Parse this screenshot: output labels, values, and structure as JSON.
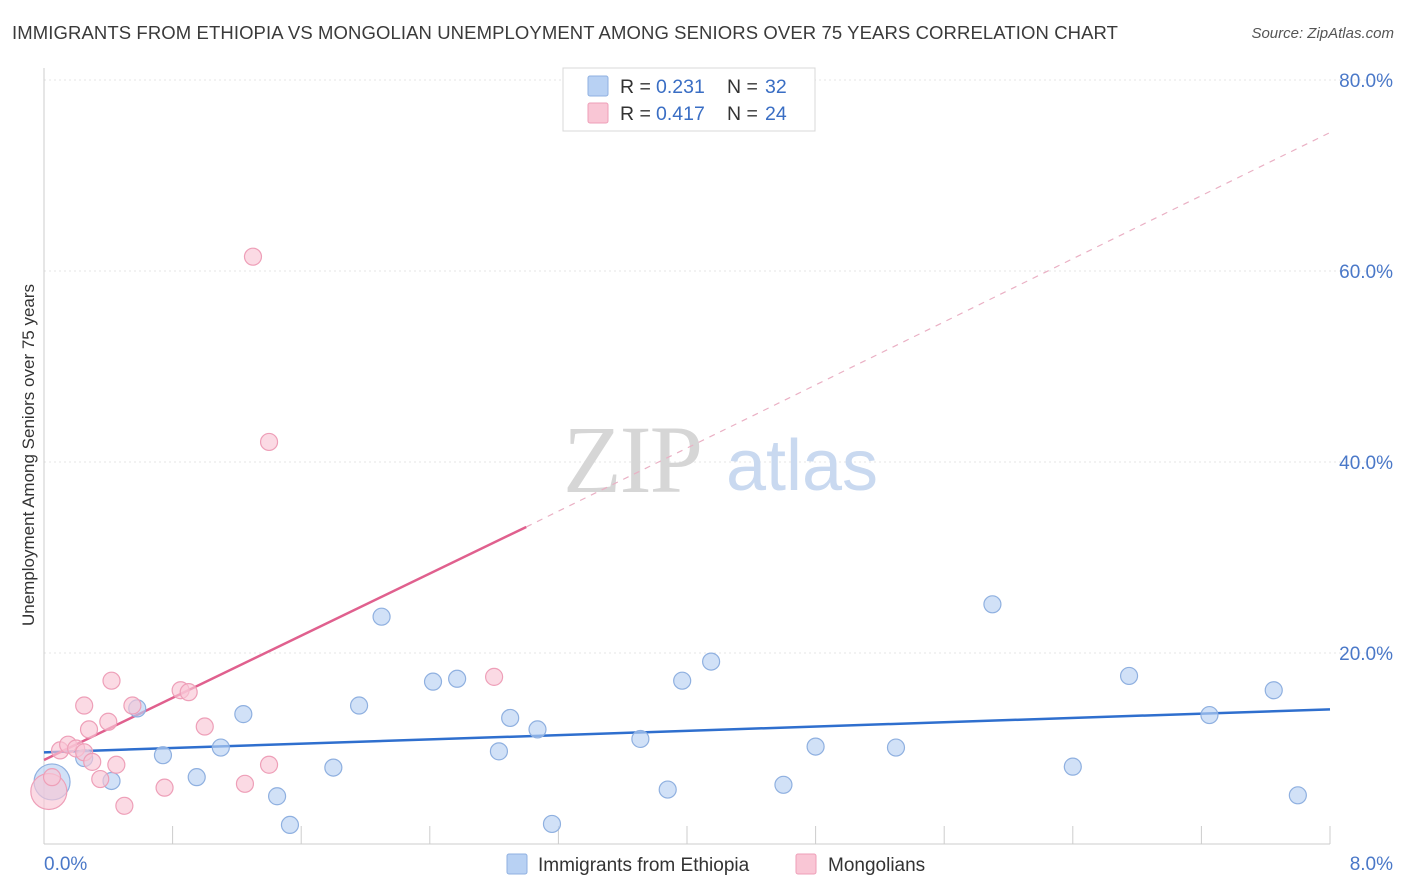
{
  "title": "IMMIGRANTS FROM ETHIOPIA VS MONGOLIAN UNEMPLOYMENT AMONG SENIORS OVER 75 YEARS CORRELATION CHART",
  "source": "Source: ZipAtlas.com",
  "watermark": {
    "zip": "ZIP",
    "atlas": "atlas"
  },
  "legend_top": [
    {
      "r_label": "R =",
      "r_value": "0.231",
      "n_label": "N =",
      "n_value": "32",
      "fill": "#b8d1f3",
      "stroke": "#8fb0e0"
    },
    {
      "r_label": "R =",
      "r_value": "0.417",
      "n_label": "N =",
      "n_value": "24",
      "fill": "#f9c6d5",
      "stroke": "#ee9fb8"
    }
  ],
  "chart_data": {
    "type": "scatter",
    "title": "IMMIGRANTS FROM ETHIOPIA VS MONGOLIAN UNEMPLOYMENT AMONG SENIORS OVER 75 YEARS CORRELATION CHART",
    "xlabel": "",
    "ylabel": "Unemployment Among Seniors over 75 years",
    "xlim": [
      0,
      8
    ],
    "ylim": [
      0,
      80
    ],
    "x_tick_labels": [
      "0.0%",
      "8.0%"
    ],
    "y_ticks": [
      20,
      40,
      60,
      80
    ],
    "y_tick_labels": [
      "20.0%",
      "40.0%",
      "60.0%",
      "80.0%"
    ],
    "grid": true,
    "legend_position": "top-center",
    "series": [
      {
        "name": "Immigrants from Ethiopia",
        "color": "#b8d1f3",
        "edge": "#8fb0e0",
        "line_color": "#2f6fce",
        "trend": {
          "x": [
            0,
            8
          ],
          "y": [
            9.6,
            14.1
          ]
        },
        "points": [
          {
            "x": 0.05,
            "y": 6.5,
            "big": true
          },
          {
            "x": 0.25,
            "y": 9.0
          },
          {
            "x": 0.42,
            "y": 6.6
          },
          {
            "x": 0.58,
            "y": 14.2
          },
          {
            "x": 0.74,
            "y": 9.3
          },
          {
            "x": 0.95,
            "y": 7.0
          },
          {
            "x": 1.1,
            "y": 10.1
          },
          {
            "x": 1.24,
            "y": 13.6
          },
          {
            "x": 1.45,
            "y": 5.0
          },
          {
            "x": 1.53,
            "y": 2.0
          },
          {
            "x": 1.8,
            "y": 8.0
          },
          {
            "x": 1.96,
            "y": 14.5
          },
          {
            "x": 2.1,
            "y": 23.8
          },
          {
            "x": 2.42,
            "y": 17.0
          },
          {
            "x": 2.57,
            "y": 17.3
          },
          {
            "x": 2.83,
            "y": 9.7
          },
          {
            "x": 2.9,
            "y": 13.2
          },
          {
            "x": 3.07,
            "y": 12.0
          },
          {
            "x": 3.16,
            "y": 2.1
          },
          {
            "x": 3.71,
            "y": 11.0
          },
          {
            "x": 3.88,
            "y": 5.7
          },
          {
            "x": 3.97,
            "y": 17.1
          },
          {
            "x": 4.15,
            "y": 19.1
          },
          {
            "x": 4.6,
            "y": 6.2
          },
          {
            "x": 4.8,
            "y": 10.2
          },
          {
            "x": 5.3,
            "y": 10.1
          },
          {
            "x": 5.9,
            "y": 25.1
          },
          {
            "x": 6.4,
            "y": 8.1
          },
          {
            "x": 6.75,
            "y": 17.6
          },
          {
            "x": 7.25,
            "y": 13.5
          },
          {
            "x": 7.65,
            "y": 16.1
          },
          {
            "x": 7.8,
            "y": 5.1
          }
        ]
      },
      {
        "name": "Mongolians",
        "color": "#f9c6d5",
        "edge": "#ee9fb8",
        "line_color": "#e0608e",
        "trend": {
          "x": [
            0,
            3.0
          ],
          "y": [
            8.8,
            33.2
          ]
        },
        "trend_dashed": {
          "x": [
            3.0,
            8
          ],
          "y": [
            33.2,
            74.5
          ]
        },
        "points": [
          {
            "x": 0.03,
            "y": 5.5,
            "big": true
          },
          {
            "x": 0.05,
            "y": 7.0
          },
          {
            "x": 0.1,
            "y": 9.8
          },
          {
            "x": 0.15,
            "y": 10.4
          },
          {
            "x": 0.2,
            "y": 10.0
          },
          {
            "x": 0.25,
            "y": 9.6
          },
          {
            "x": 0.3,
            "y": 8.6
          },
          {
            "x": 0.25,
            "y": 14.5
          },
          {
            "x": 0.28,
            "y": 12.0
          },
          {
            "x": 0.35,
            "y": 6.8
          },
          {
            "x": 0.4,
            "y": 12.8
          },
          {
            "x": 0.45,
            "y": 8.3
          },
          {
            "x": 0.42,
            "y": 17.1
          },
          {
            "x": 0.5,
            "y": 4.0
          },
          {
            "x": 0.55,
            "y": 14.5
          },
          {
            "x": 0.75,
            "y": 5.9
          },
          {
            "x": 0.85,
            "y": 16.1
          },
          {
            "x": 0.9,
            "y": 15.9
          },
          {
            "x": 1.0,
            "y": 12.3
          },
          {
            "x": 1.25,
            "y": 6.3
          },
          {
            "x": 1.3,
            "y": 61.5
          },
          {
            "x": 1.4,
            "y": 42.1
          },
          {
            "x": 1.4,
            "y": 8.3
          },
          {
            "x": 2.8,
            "y": 17.5
          }
        ]
      }
    ]
  }
}
